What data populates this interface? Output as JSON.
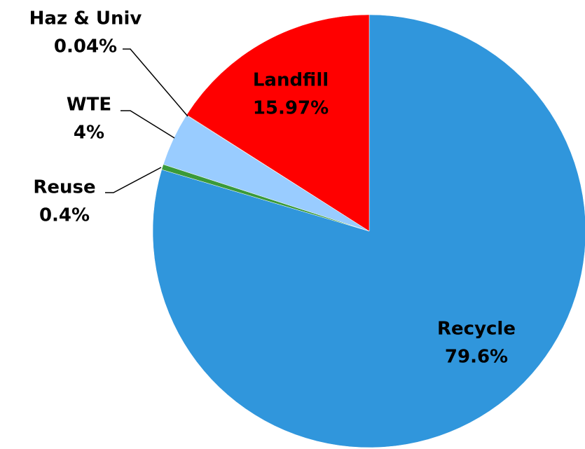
{
  "chart_data": {
    "type": "pie",
    "categories": [
      "Recycle",
      "Reuse",
      "WTE",
      "Haz & Univ",
      "Landfill"
    ],
    "values": [
      79.6,
      0.4,
      4,
      0.04,
      15.97
    ],
    "value_labels": [
      "79.6%",
      "0.4%",
      "4%",
      "0.04%",
      "15.97%"
    ],
    "colors": [
      "#3096dc",
      "#3a9a3a",
      "#99ccff",
      "#7f7f7f",
      "#ff0000"
    ]
  }
}
